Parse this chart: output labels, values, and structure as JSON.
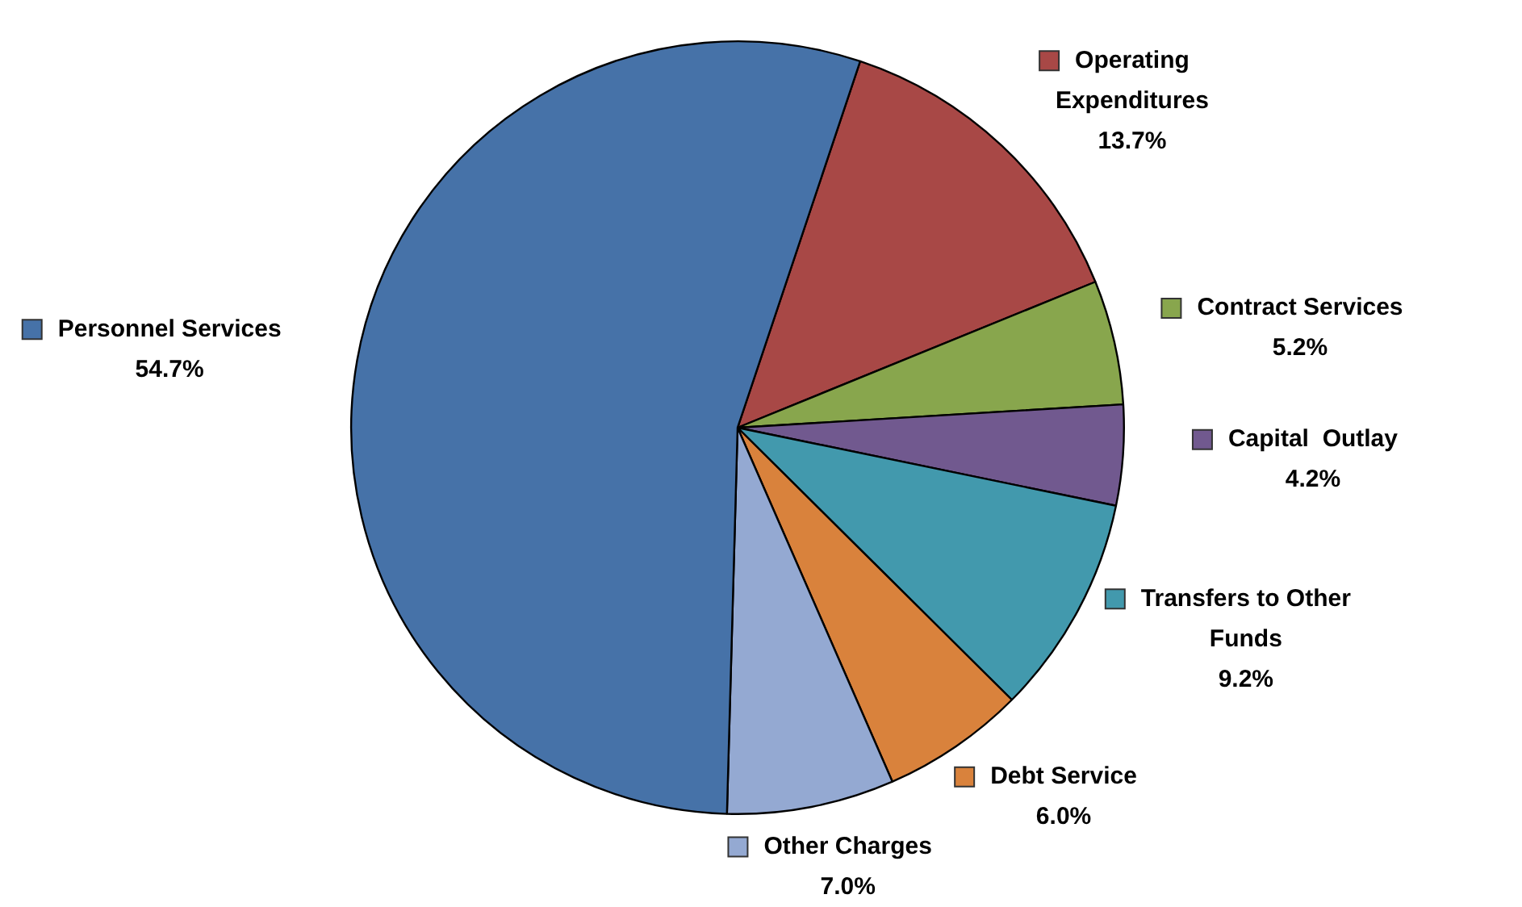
{
  "chart_data": {
    "type": "pie",
    "categories": [
      "Operating Expenditures",
      "Contract Services",
      "Capital  Outlay",
      "Transfers to Other Funds",
      "Debt Service",
      "Other Charges",
      "Personnel Services"
    ],
    "values": [
      13.7,
      5.2,
      4.2,
      9.2,
      6.0,
      7.0,
      54.7
    ],
    "value_labels": [
      "13.7%",
      "5.2%",
      "4.2%",
      "9.2%",
      "6.0%",
      "7.0%",
      "54.7%"
    ],
    "colors": [
      "#a84846",
      "#88a64d",
      "#71598f",
      "#4299ad",
      "#d9823c",
      "#94a9d2",
      "#4672a8"
    ],
    "legend": "right"
  }
}
